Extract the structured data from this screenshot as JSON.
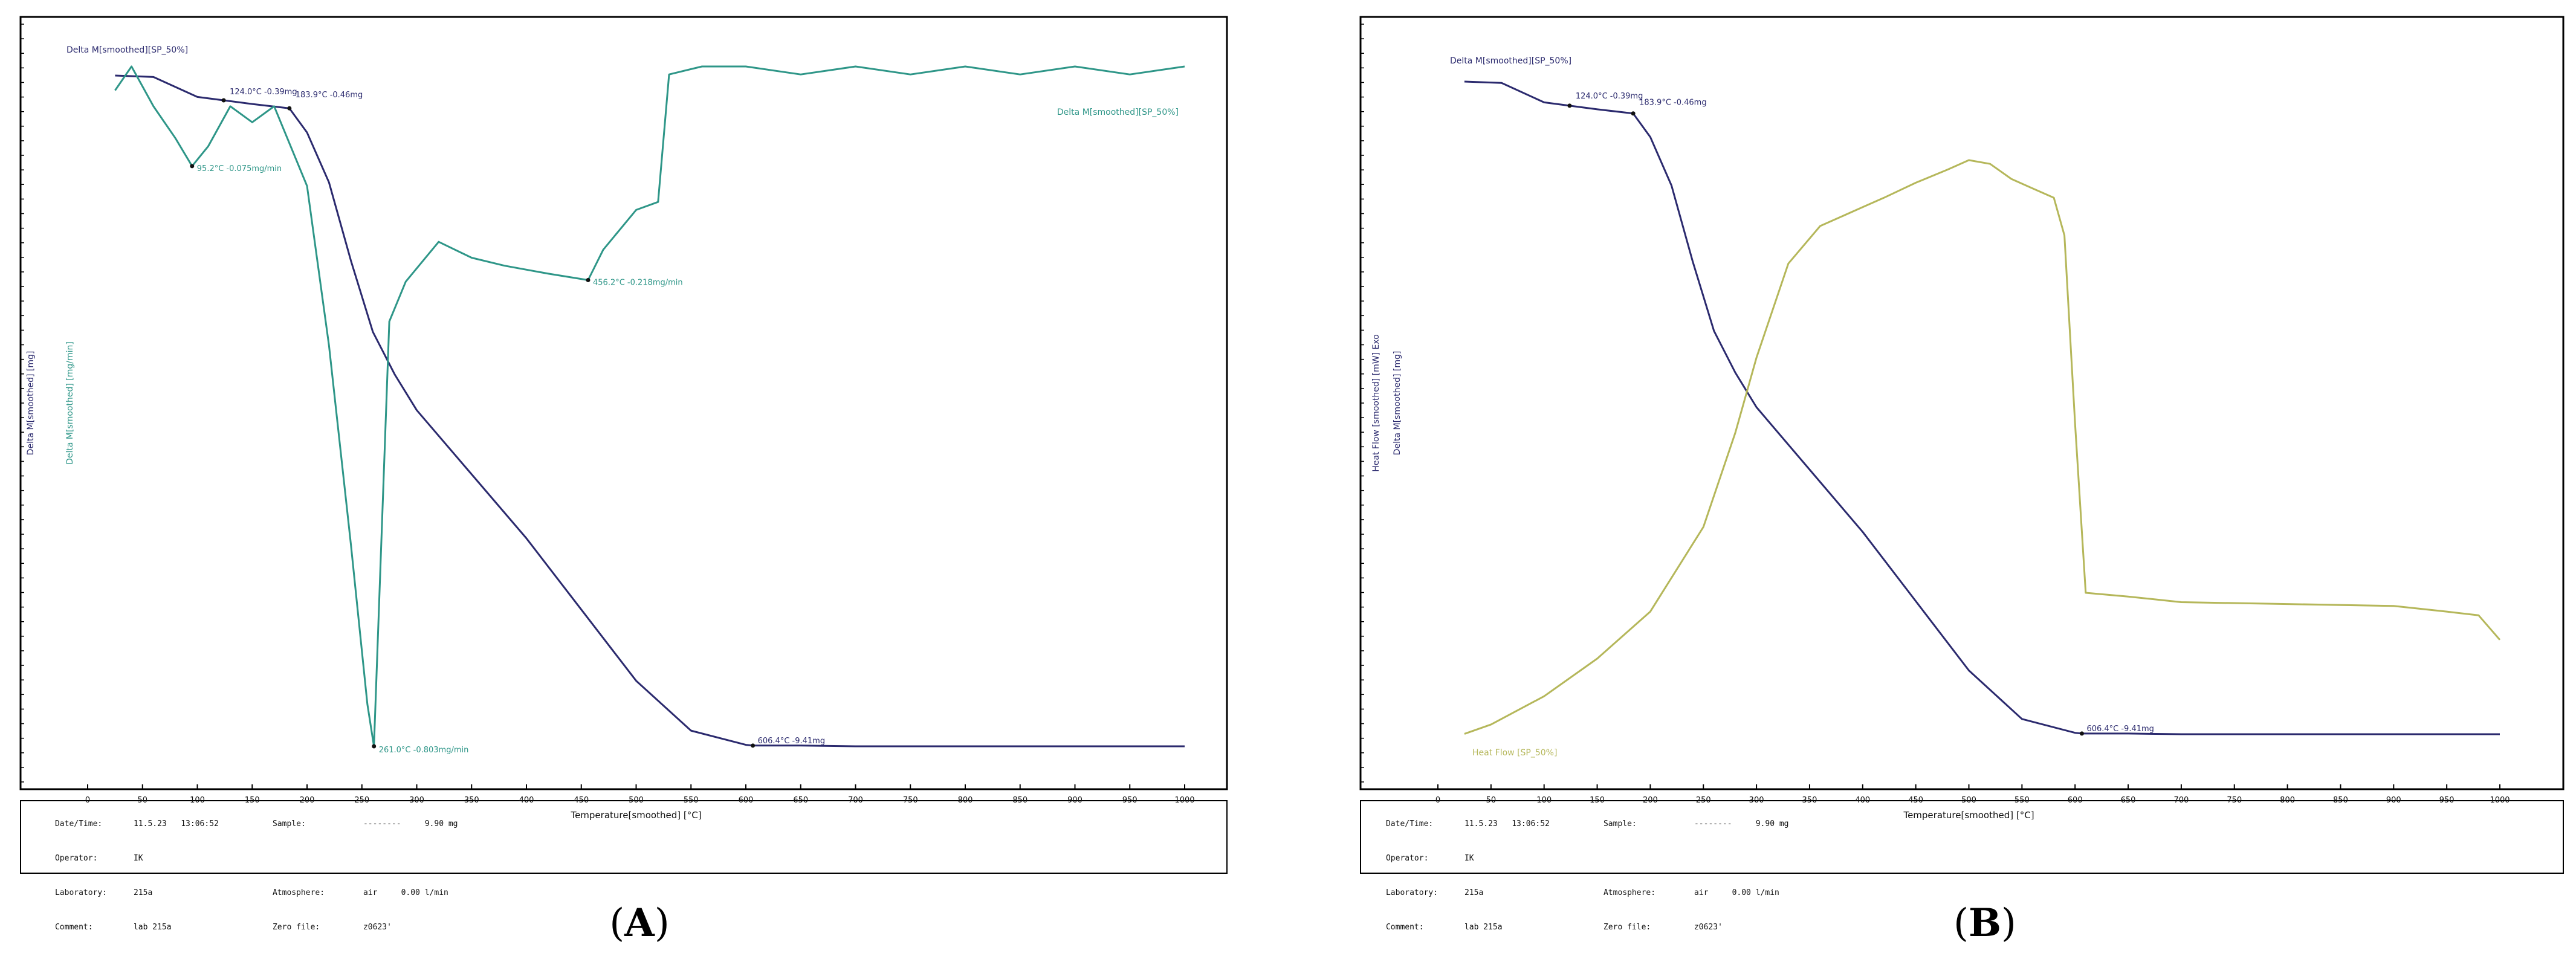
{
  "panels": [
    {
      "id": "A",
      "caption": "A",
      "info": {
        "date_time_label": "Date/Time:",
        "date_time": "11.5.23   13:06:52",
        "sample_label": "Sample:",
        "sample": "--------     9.90 mg",
        "operator_label": "Operator:",
        "operator": "IK",
        "laboratory_label": "Laboratory:",
        "laboratory": "215a",
        "atmosphere_label": "Atmosphere:",
        "atmosphere": "air     0.00 l/min",
        "comment_label": "Comment:",
        "comment": "lab 215a",
        "zero_file_label": "Zero file:",
        "zero_file": "z0623'"
      }
    },
    {
      "id": "B",
      "caption": "B",
      "info": {
        "date_time_label": "Date/Time:",
        "date_time": "11.5.23   13:06:52",
        "sample_label": "Sample:",
        "sample": "--------     9.90 mg",
        "operator_label": "Operator:",
        "operator": "IK",
        "laboratory_label": "Laboratory:",
        "laboratory": "215a",
        "atmosphere_label": "Atmosphere:",
        "atmosphere": "air     0.00 l/min",
        "comment_label": "Comment:",
        "comment": "lab 215a",
        "zero_file_label": "Zero file:",
        "zero_file": "z0623'"
      }
    }
  ],
  "colors": {
    "mass": "#2b2a6e",
    "dtg": "#2e9688",
    "heat": "#b5b75a",
    "frame": "#000000"
  },
  "chart_data": [
    {
      "type": "line",
      "panel": "A",
      "xlabel": "Temperature[smoothed] [°C]",
      "ylabel_left": "Delta M[smoothed] [mg]",
      "ylabel_right": "Delta M[smoothed] [mg/min]",
      "xlim": [
        0,
        1000
      ],
      "x_ticks": [
        "0",
        "50",
        "100",
        "150",
        "200",
        "250",
        "300",
        "350",
        "400",
        "450",
        "500",
        "550",
        "600",
        "650",
        "700",
        "750",
        "800",
        "850",
        "900",
        "950",
        "1000"
      ],
      "series": [
        {
          "name": "Delta M[smoothed][SP_50%]",
          "axis": "left",
          "x": [
            25,
            60,
            100,
            150,
            183.9,
            200,
            220,
            240,
            260,
            280,
            300,
            350,
            400,
            450,
            500,
            550,
            600,
            606.4,
            650,
            700,
            800,
            900,
            1000
          ],
          "y": [
            0.0,
            -0.02,
            -0.3,
            -0.4,
            -0.46,
            -0.8,
            -1.5,
            -2.6,
            -3.6,
            -4.2,
            -4.7,
            -5.6,
            -6.5,
            -7.5,
            -8.5,
            -9.2,
            -9.4,
            -9.41,
            -9.41,
            -9.42,
            -9.42,
            -9.42,
            -9.42
          ]
        },
        {
          "name": "Delta M[smoothed][SP_50%]",
          "axis": "right",
          "x": [
            25,
            40,
            60,
            80,
            95.2,
            110,
            130,
            150,
            170,
            200,
            220,
            240,
            255,
            261,
            265,
            275,
            290,
            320,
            350,
            380,
            420,
            456.2,
            470,
            500,
            520,
            530,
            560,
            600,
            650,
            700,
            750,
            800,
            850,
            900,
            950,
            1000
          ],
          "y": [
            0.02,
            0.05,
            0.0,
            -0.04,
            -0.075,
            -0.05,
            0.0,
            -0.02,
            0.0,
            -0.1,
            -0.3,
            -0.55,
            -0.75,
            -0.803,
            -0.65,
            -0.27,
            -0.22,
            -0.17,
            -0.19,
            -0.2,
            -0.21,
            -0.218,
            -0.18,
            -0.13,
            -0.12,
            0.04,
            0.05,
            0.05,
            0.04,
            0.05,
            0.04,
            0.05,
            0.04,
            0.05,
            0.04,
            0.05
          ]
        }
      ],
      "annotations": [
        {
          "text": "124.0°C  -0.39mg",
          "x": 124,
          "series": 0
        },
        {
          "text": "183.9°C  -0.46mg",
          "x": 183.9,
          "series": 0
        },
        {
          "text": "95.2°C  -0.075mg/min",
          "x": 95.2,
          "series": 1
        },
        {
          "text": "261.0°C  -0.803mg/min",
          "x": 261,
          "series": 1
        },
        {
          "text": "456.2°C  -0.218mg/min",
          "x": 456.2,
          "series": 1
        },
        {
          "text": "606.4°C  -9.41mg",
          "x": 606.4,
          "series": 0
        }
      ]
    },
    {
      "type": "line",
      "panel": "B",
      "xlabel": "Temperature[smoothed] [°C]",
      "ylabel_left": "Heat Flow [smoothed] [mW] Exo",
      "ylabel_left2": "Delta M[smoothed] [mg]",
      "xlim": [
        0,
        1000
      ],
      "x_ticks": [
        "0",
        "50",
        "100",
        "150",
        "200",
        "250",
        "300",
        "350",
        "400",
        "450",
        "500",
        "550",
        "600",
        "650",
        "700",
        "750",
        "800",
        "850",
        "900",
        "950",
        "1000"
      ],
      "series": [
        {
          "name": "Delta M[smoothed][SP_50%]",
          "axis": "left",
          "x": [
            25,
            60,
            100,
            150,
            183.9,
            200,
            220,
            240,
            260,
            280,
            300,
            350,
            400,
            450,
            500,
            550,
            600,
            606.4,
            650,
            700,
            800,
            900,
            1000
          ],
          "y": [
            0.0,
            -0.02,
            -0.3,
            -0.4,
            -0.46,
            -0.8,
            -1.5,
            -2.6,
            -3.6,
            -4.2,
            -4.7,
            -5.6,
            -6.5,
            -7.5,
            -8.5,
            -9.2,
            -9.4,
            -9.41,
            -9.41,
            -9.42,
            -9.42,
            -9.42,
            -9.42
          ]
        },
        {
          "name": "Heat Flow [SP_50%]",
          "axis": "right",
          "x": [
            25,
            50,
            100,
            150,
            200,
            250,
            280,
            300,
            330,
            360,
            380,
            400,
            420,
            450,
            480,
            500,
            520,
            540,
            560,
            580,
            590,
            600,
            610,
            650,
            700,
            800,
            900,
            950,
            980,
            1000
          ],
          "y": [
            0.5,
            1.0,
            2.5,
            4.5,
            7.0,
            11.5,
            16.5,
            20.5,
            25.5,
            27.5,
            28.0,
            28.5,
            29.0,
            29.8,
            30.5,
            31.0,
            30.8,
            30.0,
            29.5,
            29.0,
            27.0,
            17.0,
            8.0,
            7.8,
            7.5,
            7.4,
            7.3,
            7.0,
            6.8,
            5.5
          ]
        }
      ],
      "annotations": [
        {
          "text": "124.0°C  -0.39mg",
          "x": 124,
          "series": 0
        },
        {
          "text": "183.9°C  -0.46mg",
          "x": 183.9,
          "series": 0
        },
        {
          "text": "606.4°C  -9.41mg",
          "x": 606.4,
          "series": 0
        }
      ]
    }
  ]
}
